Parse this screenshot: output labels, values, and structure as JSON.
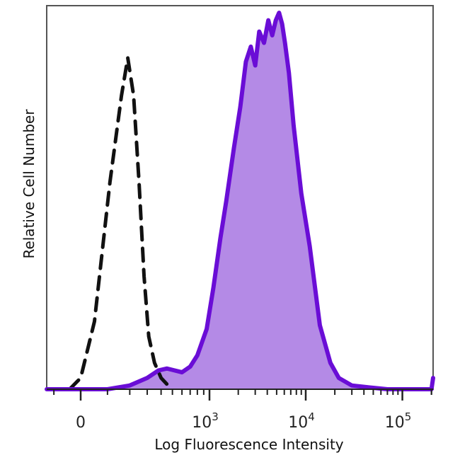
{
  "chart_data": {
    "type": "area",
    "xscale": "biexponential",
    "xlabel": "Log Fluorescence Intensity",
    "ylabel": "Relative Cell Number",
    "xlim": [
      -300,
      250000
    ],
    "ylim": [
      0,
      100
    ],
    "xticks": [
      {
        "value": 0,
        "base": "0",
        "exp": ""
      },
      {
        "value": 1000,
        "base": "10",
        "exp": "3"
      },
      {
        "value": 10000,
        "base": "10",
        "exp": "4"
      },
      {
        "value": 100000,
        "base": "10",
        "exp": "5"
      }
    ],
    "yticks": [],
    "grid": false,
    "legend": "none",
    "series": [
      {
        "style": "dashed",
        "color": "#111111",
        "fill": "none",
        "x": [
          -40,
          0,
          50,
          110,
          160,
          190,
          220,
          250,
          280,
          310,
          350,
          400,
          460
        ],
        "y": [
          0,
          3,
          18,
          55,
          78,
          88,
          78,
          55,
          30,
          14,
          7,
          3,
          1
        ]
      },
      {
        "style": "solid",
        "color": "#6A0DD6",
        "fill": "#B48AE6",
        "x": [
          -300,
          100,
          200,
          300,
          380,
          450,
          520,
          600,
          700,
          800,
          950,
          1100,
          1300,
          1500,
          1800,
          2100,
          2400,
          2700,
          3000,
          3300,
          3700,
          4100,
          4500,
          4900,
          5300,
          5700,
          6100,
          6700,
          7500,
          9000,
          11000,
          14000,
          18000,
          22000,
          30000,
          45000,
          70000,
          120000,
          200000,
          250000
        ],
        "y": [
          0,
          0,
          1,
          3,
          5,
          5.5,
          5,
          4.5,
          6,
          9,
          16,
          27,
          40,
          50,
          64,
          75,
          87,
          91,
          86,
          95,
          92,
          98,
          94,
          98,
          100,
          97,
          92,
          84,
          70,
          52,
          38,
          17,
          7,
          3,
          1,
          0.5,
          0,
          0,
          0,
          3
        ]
      }
    ]
  }
}
